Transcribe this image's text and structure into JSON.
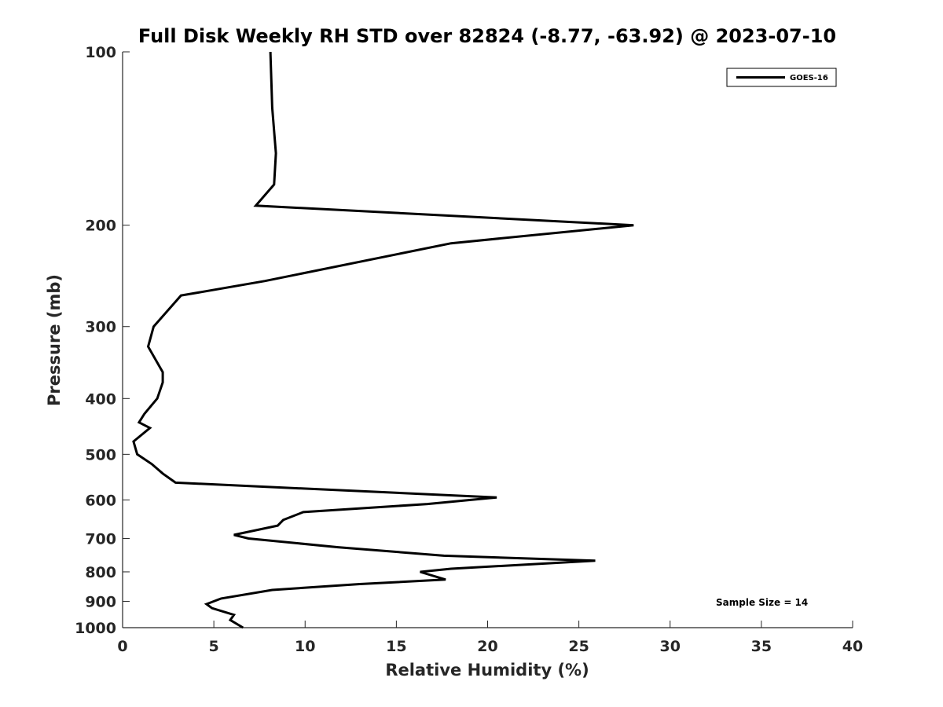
{
  "chart_data": {
    "type": "line",
    "title": "Full Disk Weekly RH STD over 82824 (-8.77, -63.92) @ 2023-07-10",
    "xlabel": "Relative Humidity (%)",
    "ylabel": "Pressure (mb)",
    "xlim": [
      0,
      40
    ],
    "ylim": [
      100,
      1000
    ],
    "y_scale": "log",
    "y_reversed": true,
    "x_ticks": [
      "0",
      "5",
      "10",
      "15",
      "20",
      "25",
      "30",
      "35",
      "40"
    ],
    "y_ticks": [
      "100",
      "200",
      "300",
      "400",
      "500",
      "600",
      "700",
      "800",
      "900",
      "1000"
    ],
    "grid": false,
    "legend": {
      "position": "top-right",
      "entries": [
        "GOES-16"
      ]
    },
    "annotation": "Sample Size = 14",
    "series": [
      {
        "name": "GOES-16",
        "color": "#000000",
        "points": [
          [
            8.1,
            100
          ],
          [
            8.2,
            125
          ],
          [
            8.4,
            150
          ],
          [
            8.3,
            170
          ],
          [
            7.3,
            185
          ],
          [
            28.0,
            200
          ],
          [
            18.0,
            215
          ],
          [
            7.8,
            250
          ],
          [
            3.2,
            265
          ],
          [
            1.7,
            300
          ],
          [
            1.4,
            325
          ],
          [
            2.2,
            360
          ],
          [
            2.2,
            375
          ],
          [
            1.9,
            400
          ],
          [
            1.2,
            425
          ],
          [
            0.9,
            440
          ],
          [
            1.5,
            450
          ],
          [
            0.6,
            475
          ],
          [
            0.8,
            500
          ],
          [
            1.6,
            520
          ],
          [
            2.2,
            540
          ],
          [
            2.9,
            560
          ],
          [
            20.5,
            594
          ],
          [
            16.7,
            610
          ],
          [
            9.9,
            630
          ],
          [
            8.8,
            650
          ],
          [
            8.5,
            665
          ],
          [
            6.1,
            690
          ],
          [
            6.9,
            700
          ],
          [
            11.8,
            725
          ],
          [
            17.6,
            750
          ],
          [
            25.9,
            765
          ],
          [
            18.0,
            790
          ],
          [
            16.3,
            800
          ],
          [
            17.7,
            825
          ],
          [
            13.0,
            840
          ],
          [
            8.2,
            860
          ],
          [
            5.4,
            890
          ],
          [
            4.6,
            910
          ],
          [
            4.9,
            925
          ],
          [
            6.1,
            950
          ],
          [
            5.9,
            970
          ],
          [
            6.6,
            1000
          ]
        ]
      }
    ]
  }
}
